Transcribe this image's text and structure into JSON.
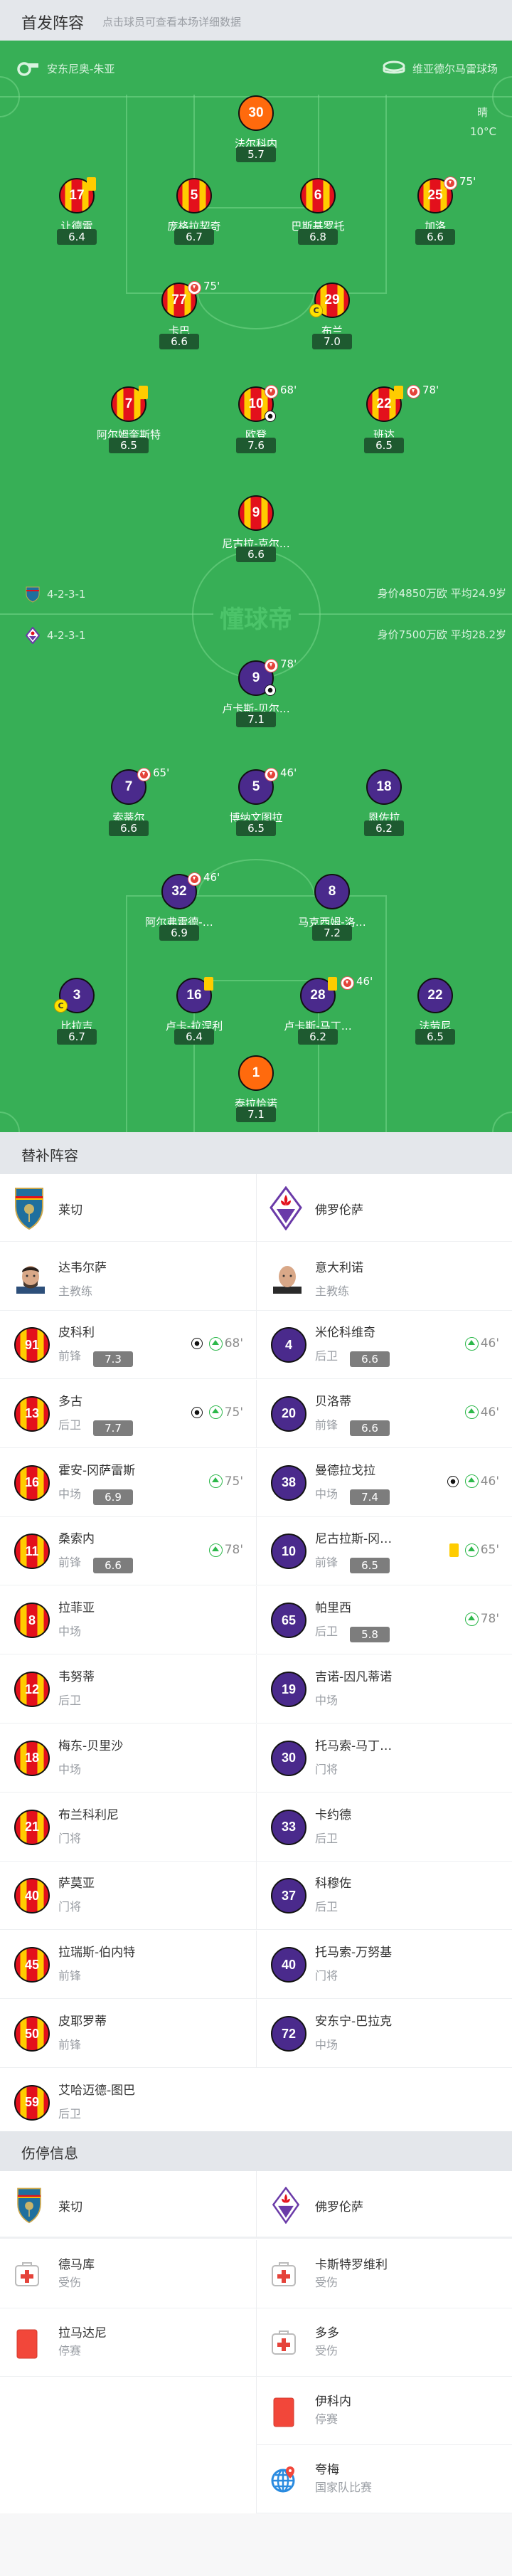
{
  "header": {
    "title": "首发阵容",
    "subtitle": "点击球员可查看本场详细数据"
  },
  "match": {
    "referee": "安东尼奥-朱亚",
    "stadium": "维亚德尔马雷球场",
    "weather": "晴",
    "temperature": "10°C",
    "watermark": "懂球帝"
  },
  "colors": {
    "pitch": "#37af56",
    "home": "#e3101c",
    "home_stripe": "#ffcc00",
    "away": "#4a2a8c",
    "goalkeeper": "#ff6a0d",
    "rating_bg": "#1e5a30"
  },
  "home": {
    "name": "莱切",
    "formation": "4-2-3-1",
    "value": "身价4850万欧 平均24.9岁",
    "coach": "达韦尔萨",
    "coach_role": "主教练",
    "lineup": [
      [
        {
          "number": "30",
          "name": "法尔科内",
          "rating": "5.7",
          "gk": true
        }
      ],
      [
        {
          "number": "17",
          "name": "让德雷",
          "rating": "6.4",
          "yellow": true
        },
        {
          "number": "5",
          "name": "庞格拉契奇",
          "rating": "6.7"
        },
        {
          "number": "6",
          "name": "巴斯基罗托",
          "rating": "6.8"
        },
        {
          "number": "25",
          "name": "加洛",
          "rating": "6.6",
          "sub_out": "75'"
        }
      ],
      [
        {
          "number": "77",
          "name": "卡巴",
          "rating": "6.6",
          "sub_out": "75'"
        },
        {
          "number": "29",
          "name": "布兰",
          "rating": "7.0",
          "captain": true
        }
      ],
      [
        {
          "number": "7",
          "name": "阿尔姆奎斯特",
          "rating": "6.5",
          "yellow": true
        },
        {
          "number": "10",
          "name": "欧登",
          "rating": "7.6",
          "sub_out": "68'",
          "goal": true
        },
        {
          "number": "22",
          "name": "班达",
          "rating": "6.5",
          "yellow": true,
          "sub_out": "78'"
        }
      ],
      [
        {
          "number": "9",
          "name": "尼古拉-克尔…",
          "rating": "6.6"
        }
      ]
    ],
    "subs": [
      {
        "number": "91",
        "name": "皮科利",
        "position": "前锋",
        "rating": "7.3",
        "goal": true,
        "sub_in": "68'"
      },
      {
        "number": "13",
        "name": "多古",
        "position": "后卫",
        "rating": "7.7",
        "goal": true,
        "sub_in": "75'"
      },
      {
        "number": "16",
        "name": "霍安-冈萨雷斯",
        "position": "中场",
        "rating": "6.9",
        "sub_in": "75'"
      },
      {
        "number": "11",
        "name": "桑索内",
        "position": "前锋",
        "rating": "6.6",
        "sub_in": "78'"
      },
      {
        "number": "8",
        "name": "拉菲亚",
        "position": "中场"
      },
      {
        "number": "12",
        "name": "韦努蒂",
        "position": "后卫"
      },
      {
        "number": "18",
        "name": "梅东-贝里沙",
        "position": "中场"
      },
      {
        "number": "21",
        "name": "布兰科利尼",
        "position": "门将"
      },
      {
        "number": "40",
        "name": "萨莫亚",
        "position": "门将"
      },
      {
        "number": "45",
        "name": "拉瑞斯-伯内特",
        "position": "前锋"
      },
      {
        "number": "50",
        "name": "皮耶罗蒂",
        "position": "前锋"
      },
      {
        "number": "59",
        "name": "艾哈迈德-图巴",
        "position": "后卫"
      }
    ],
    "absences": [
      {
        "name": "德马库",
        "reason": "受伤",
        "icon": "medical-kit-icon"
      },
      {
        "name": "拉马达尼",
        "reason": "停赛",
        "icon": "red-card-icon"
      }
    ]
  },
  "away": {
    "name": "佛罗伦萨",
    "formation": "4-2-3-1",
    "value": "身价7500万欧 平均28.2岁",
    "coach": "意大利诺",
    "coach_role": "主教练",
    "lineup": [
      [
        {
          "number": "9",
          "name": "卢卡斯-贝尔…",
          "rating": "7.1",
          "sub_out": "78'",
          "goal": true
        }
      ],
      [
        {
          "number": "7",
          "name": "索蒂尔",
          "rating": "6.6",
          "sub_out": "65'"
        },
        {
          "number": "5",
          "name": "博纳文图拉",
          "rating": "6.5",
          "sub_out": "46'"
        },
        {
          "number": "18",
          "name": "恩佐拉",
          "rating": "6.2"
        }
      ],
      [
        {
          "number": "32",
          "name": "阿尔弗雷德-…",
          "rating": "6.9",
          "sub_out": "46'"
        },
        {
          "number": "8",
          "name": "马克西姆-洛…",
          "rating": "7.2"
        }
      ],
      [
        {
          "number": "3",
          "name": "比拉吉",
          "rating": "6.7",
          "captain": true
        },
        {
          "number": "16",
          "name": "卢卡-拉涅利",
          "rating": "6.4",
          "yellow": true
        },
        {
          "number": "28",
          "name": "卢卡斯-马丁…",
          "rating": "6.2",
          "yellow": true,
          "sub_out": "46'"
        },
        {
          "number": "22",
          "name": "法劳尼",
          "rating": "6.5"
        }
      ],
      [
        {
          "number": "1",
          "name": "泰拉恰诺",
          "rating": "7.1",
          "gk": true
        }
      ]
    ],
    "subs": [
      {
        "number": "4",
        "name": "米伦科维奇",
        "position": "后卫",
        "rating": "6.6",
        "sub_in": "46'"
      },
      {
        "number": "20",
        "name": "贝洛蒂",
        "position": "前锋",
        "rating": "6.6",
        "sub_in": "46'"
      },
      {
        "number": "38",
        "name": "曼德拉戈拉",
        "position": "中场",
        "rating": "7.4",
        "goal": true,
        "sub_in": "46'"
      },
      {
        "number": "10",
        "name": "尼古拉斯-冈…",
        "position": "前锋",
        "rating": "6.5",
        "yellow": true,
        "sub_in": "65'"
      },
      {
        "number": "65",
        "name": "帕里西",
        "position": "后卫",
        "rating": "5.8",
        "sub_in": "78'"
      },
      {
        "number": "19",
        "name": "吉诺-因凡蒂诺",
        "position": "中场"
      },
      {
        "number": "30",
        "name": "托马索-马丁…",
        "position": "门将"
      },
      {
        "number": "33",
        "name": "卡约德",
        "position": "后卫"
      },
      {
        "number": "37",
        "name": "科穆佐",
        "position": "后卫"
      },
      {
        "number": "40",
        "name": "托马索-万努基",
        "position": "门将"
      },
      {
        "number": "72",
        "name": "安东宁-巴拉克",
        "position": "中场"
      }
    ],
    "absences": [
      {
        "name": "卡斯特罗维利",
        "reason": "受伤",
        "icon": "medical-kit-icon"
      },
      {
        "name": "多多",
        "reason": "受伤",
        "icon": "medical-kit-icon"
      },
      {
        "name": "伊科内",
        "reason": "停赛",
        "icon": "red-card-icon"
      },
      {
        "name": "夸梅",
        "reason": "国家队比赛",
        "icon": "globe-icon"
      }
    ]
  },
  "subs_section": {
    "title": "替补阵容"
  },
  "absence_section": {
    "title": "伤停信息"
  }
}
